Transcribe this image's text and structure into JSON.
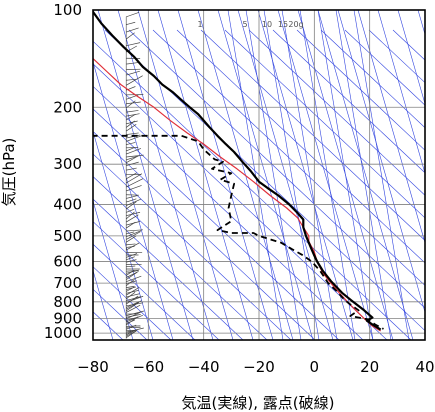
{
  "chart_data": {
    "type": "line",
    "chart_kind": "skew-T log-p diagram (emagram)",
    "title": "",
    "xlabel": "気温(実線), 露点(破線)",
    "ylabel": "気圧(hPa)",
    "xlim": [
      -80,
      40
    ],
    "ylim": [
      1050,
      100
    ],
    "y_scale": "log",
    "grid": true,
    "x_ticks": [
      -80,
      -60,
      -40,
      -20,
      0,
      20,
      40
    ],
    "y_ticks": [
      100,
      200,
      300,
      400,
      500,
      600,
      700,
      800,
      900,
      1000
    ],
    "mixing_ratio_labels": [
      "1",
      "5",
      "10",
      "15",
      "20g"
    ],
    "colors": {
      "temperature": "#000000",
      "dewpoint": "#000000",
      "reference_profile": "#e0303a",
      "background_lines": "#3346e0",
      "grid": "#808080",
      "wind_barbs": "#444444"
    },
    "series": [
      {
        "style": "solid",
        "points": [
          [
            -80.5,
            100
          ],
          [
            -77,
            110
          ],
          [
            -73,
            120
          ],
          [
            -69,
            130
          ],
          [
            -65,
            140
          ],
          [
            -62,
            150
          ],
          [
            -58,
            160
          ],
          [
            -55,
            170
          ],
          [
            -51,
            180
          ],
          [
            -48,
            190
          ],
          [
            -45,
            200
          ],
          [
            -42,
            210
          ],
          [
            -38,
            230
          ],
          [
            -35,
            245
          ],
          [
            -32,
            260
          ],
          [
            -29,
            275
          ],
          [
            -26,
            295
          ],
          [
            -23,
            315
          ],
          [
            -20,
            340
          ],
          [
            -17,
            355
          ],
          [
            -13,
            375
          ],
          [
            -9,
            400
          ],
          [
            -6,
            425
          ],
          [
            -4,
            445
          ],
          [
            -4,
            470
          ],
          [
            -3,
            500
          ],
          [
            -2,
            525
          ],
          [
            -1,
            550
          ],
          [
            0,
            575
          ],
          [
            1,
            600
          ],
          [
            3,
            640
          ],
          [
            6,
            690
          ],
          [
            10,
            750
          ],
          [
            14,
            800
          ],
          [
            18,
            850
          ],
          [
            21,
            895
          ],
          [
            19,
            915
          ],
          [
            21,
            940
          ],
          [
            24,
            975
          ]
        ]
      },
      {
        "style": "dashed",
        "points": [
          [
            -80.5,
            245
          ],
          [
            -48,
            245
          ],
          [
            -42,
            255
          ],
          [
            -40,
            270
          ],
          [
            -36,
            290
          ],
          [
            -33,
            295
          ],
          [
            -37,
            310
          ],
          [
            -30,
            320
          ],
          [
            -34,
            335
          ],
          [
            -29,
            345
          ],
          [
            -30,
            375
          ],
          [
            -31,
            410
          ],
          [
            -30,
            450
          ],
          [
            -35,
            480
          ],
          [
            -30,
            490
          ],
          [
            -22,
            490
          ],
          [
            -20,
            500
          ],
          [
            -12,
            525
          ],
          [
            -8,
            550
          ],
          [
            -4,
            575
          ],
          [
            -1,
            600
          ],
          [
            2,
            640
          ],
          [
            5,
            700
          ],
          [
            8,
            740
          ],
          [
            11,
            790
          ],
          [
            13,
            815
          ],
          [
            16,
            850
          ],
          [
            13,
            885
          ],
          [
            19,
            905
          ],
          [
            22,
            940
          ],
          [
            25,
            970
          ]
        ]
      },
      {
        "style": "solid",
        "points": [
          [
            -80.5,
            140
          ],
          [
            -75,
            155
          ],
          [
            -70,
            170
          ],
          [
            -64,
            185
          ],
          [
            -58,
            200
          ],
          [
            -52,
            220
          ],
          [
            -46,
            240
          ],
          [
            -40,
            260
          ],
          [
            -34,
            285
          ],
          [
            -28,
            310
          ],
          [
            -22,
            340
          ],
          [
            -16,
            375
          ],
          [
            -10,
            410
          ],
          [
            -6,
            440
          ],
          [
            -4,
            470
          ],
          [
            -2,
            500
          ],
          [
            -2,
            520
          ],
          [
            0,
            560
          ],
          [
            1,
            600
          ],
          [
            3,
            650
          ],
          [
            6,
            700
          ],
          [
            9,
            750
          ],
          [
            12,
            800
          ],
          [
            15,
            850
          ],
          [
            18,
            900
          ],
          [
            21,
            950
          ],
          [
            24,
            985
          ]
        ]
      }
    ]
  }
}
